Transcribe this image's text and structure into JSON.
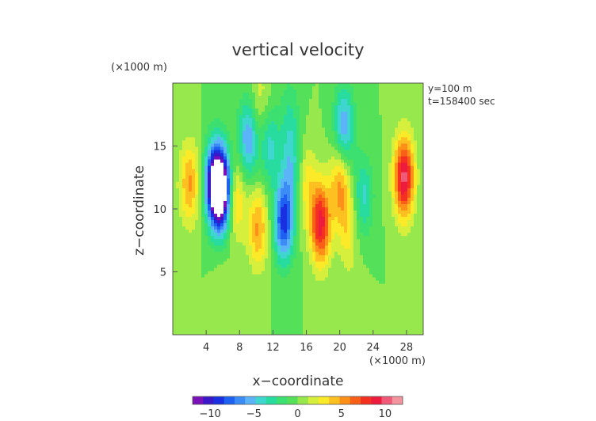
{
  "chart_data": {
    "type": "heatmap",
    "title": "vertical velocity",
    "xlabel": "x−coordinate",
    "ylabel": "z−coordinate",
    "x_unit": "(×1000 m)",
    "y_unit": "(×1000 m)",
    "annotations": [
      "y=100 m",
      "t=158400 sec"
    ],
    "xlim": [
      0,
      30
    ],
    "ylim": [
      0,
      20
    ],
    "x_ticks": [
      4,
      8,
      12,
      16,
      20,
      24,
      28
    ],
    "y_ticks": [
      5,
      10,
      15
    ],
    "x_tick_labels": [
      "4",
      "8",
      "12",
      "16",
      "20",
      "24",
      "28"
    ],
    "y_tick_labels": [
      "5",
      "10",
      "15"
    ],
    "colorbar": {
      "range": [
        -12,
        12
      ],
      "ticks": [
        "−10",
        "−5",
        "0",
        "5",
        "10"
      ],
      "tick_values": [
        -10,
        -5,
        0,
        5,
        10
      ],
      "colors": [
        "#7a10b8",
        "#3a18c8",
        "#1830e0",
        "#1e60f0",
        "#3c8cf5",
        "#5cb4f8",
        "#40d6d0",
        "#28dca0",
        "#3ce070",
        "#54e058",
        "#96e84c",
        "#d6ee3c",
        "#faea28",
        "#fcc020",
        "#fc9018",
        "#f86018",
        "#f43020",
        "#ee1c3c",
        "#f05a78",
        "#f4949e"
      ]
    },
    "features": [
      {
        "x": 2.0,
        "z": 12.0,
        "value": 5
      },
      {
        "x": 5.0,
        "z": 12.0,
        "value": -10
      },
      {
        "x": 5.8,
        "z": 11.5,
        "value": -13
      },
      {
        "x": 7.6,
        "z": 10.8,
        "value": 4
      },
      {
        "x": 9.0,
        "z": 15.5,
        "value": -6
      },
      {
        "x": 10.2,
        "z": 8.5,
        "value": 5
      },
      {
        "x": 11.6,
        "z": 15.0,
        "value": -4
      },
      {
        "x": 13.3,
        "z": 9.0,
        "value": -9
      },
      {
        "x": 14.2,
        "z": 13.5,
        "value": -4
      },
      {
        "x": 16.0,
        "z": 12.0,
        "value": 3
      },
      {
        "x": 17.7,
        "z": 8.8,
        "value": 9
      },
      {
        "x": 20.0,
        "z": 12.0,
        "value": 5
      },
      {
        "x": 21.0,
        "z": 8.5,
        "value": 3
      },
      {
        "x": 20.5,
        "z": 16.5,
        "value": -6
      },
      {
        "x": 22.8,
        "z": 11.0,
        "value": -4
      },
      {
        "x": 27.7,
        "z": 12.5,
        "value": 10
      },
      {
        "x": 10.5,
        "z": 18.5,
        "value": 2
      },
      {
        "x": 14.0,
        "z": 17.5,
        "value": -2
      },
      {
        "x": 6.0,
        "z": 3.0,
        "value": 1
      },
      {
        "x": 22.0,
        "z": 2.0,
        "value": 1
      }
    ]
  }
}
